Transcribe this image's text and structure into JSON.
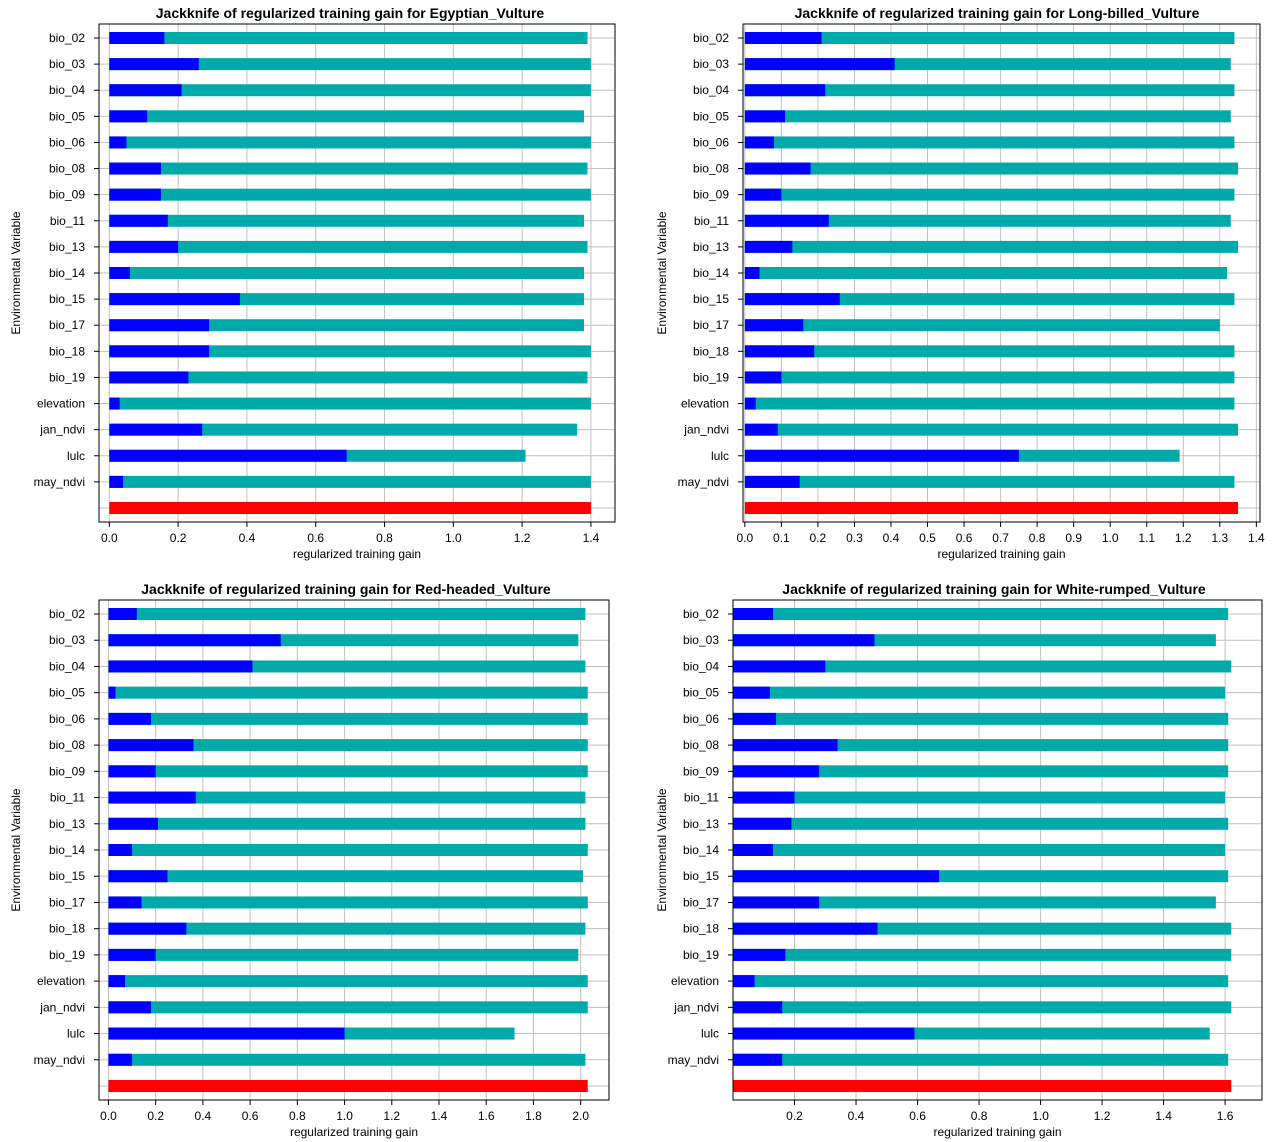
{
  "legend": {
    "without": "",
    "only": "",
    "all": ""
  },
  "colors": {
    "without_variable": "#00aaaa",
    "only_variable": "#0000ff",
    "all_variables": "#ff0000",
    "grid": "#c0c0c0"
  },
  "chart_data": [
    {
      "type": "bar",
      "orientation": "horizontal",
      "title": "Jackknife of regularized training gain for Egyptian_Vulture",
      "xlabel": "regularized training gain",
      "ylabel": "Environmental Variable",
      "xlim": [
        -0.03,
        1.47
      ],
      "xticks": [
        0.0,
        0.2,
        0.4,
        0.6,
        0.8,
        1.0,
        1.2,
        1.4
      ],
      "xtick_labels": [
        "0.0",
        "0.2",
        "0.4",
        "0.6",
        "0.8",
        "1.0",
        "1.2",
        "1.4"
      ],
      "categories": [
        "bio_02",
        "bio_03",
        "bio_04",
        "bio_05",
        "bio_06",
        "bio_08",
        "bio_09",
        "bio_11",
        "bio_13",
        "bio_14",
        "bio_15",
        "bio_17",
        "bio_18",
        "bio_19",
        "elevation",
        "jan_ndvi",
        "lulc",
        "may_ndvi"
      ],
      "series": [
        {
          "key": "without",
          "values": [
            1.39,
            1.4,
            1.4,
            1.38,
            1.4,
            1.39,
            1.4,
            1.38,
            1.39,
            1.38,
            1.38,
            1.38,
            1.4,
            1.39,
            1.4,
            1.36,
            1.21,
            1.4
          ]
        },
        {
          "key": "only",
          "values": [
            0.16,
            0.26,
            0.21,
            0.11,
            0.05,
            0.15,
            0.15,
            0.17,
            0.2,
            0.06,
            0.38,
            0.29,
            0.29,
            0.23,
            0.03,
            0.27,
            0.69,
            0.04
          ]
        }
      ],
      "all_variables": 1.4,
      "grid": true
    },
    {
      "type": "bar",
      "orientation": "horizontal",
      "title": "Jackknife of regularized training gain for Long-billed_Vulture",
      "xlabel": "regularized training gain",
      "ylabel": "Environmental Variable",
      "xlim": [
        -0.005,
        1.41
      ],
      "xticks": [
        0.0,
        0.1,
        0.2,
        0.3,
        0.4,
        0.5,
        0.6,
        0.7,
        0.8,
        0.9,
        1.0,
        1.1,
        1.2,
        1.3,
        1.4
      ],
      "xtick_labels": [
        "0.0",
        "0.1",
        "0.2",
        "0.3",
        "0.4",
        "0.5",
        "0.6",
        "0.7",
        "0.8",
        "0.9",
        "1.0",
        "1.1",
        "1.2",
        "1.3",
        "1.4"
      ],
      "categories": [
        "bio_02",
        "bio_03",
        "bio_04",
        "bio_05",
        "bio_06",
        "bio_08",
        "bio_09",
        "bio_11",
        "bio_13",
        "bio_14",
        "bio_15",
        "bio_17",
        "bio_18",
        "bio_19",
        "elevation",
        "jan_ndvi",
        "lulc",
        "may_ndvi"
      ],
      "series": [
        {
          "key": "without",
          "values": [
            1.34,
            1.33,
            1.34,
            1.33,
            1.34,
            1.35,
            1.34,
            1.33,
            1.35,
            1.32,
            1.34,
            1.3,
            1.34,
            1.34,
            1.34,
            1.35,
            1.19,
            1.34
          ]
        },
        {
          "key": "only",
          "values": [
            0.21,
            0.41,
            0.22,
            0.11,
            0.08,
            0.18,
            0.1,
            0.23,
            0.13,
            0.04,
            0.26,
            0.16,
            0.19,
            0.1,
            0.03,
            0.09,
            0.75,
            0.15
          ]
        }
      ],
      "all_variables": 1.35,
      "grid": true
    },
    {
      "type": "bar",
      "orientation": "horizontal",
      "title": "Jackknife of regularized training gain for Red-headed_Vulture",
      "xlabel": "regularized training gain",
      "ylabel": "Environmental Variable",
      "xlim": [
        -0.04,
        2.12
      ],
      "xticks": [
        0.0,
        0.2,
        0.4,
        0.6,
        0.8,
        1.0,
        1.2,
        1.4,
        1.6,
        1.8,
        2.0
      ],
      "xtick_labels": [
        "0.0",
        "0.2",
        "0.4",
        "0.6",
        "0.8",
        "1.0",
        "1.2",
        "1.4",
        "1.6",
        "1.8",
        "2.0"
      ],
      "categories": [
        "bio_02",
        "bio_03",
        "bio_04",
        "bio_05",
        "bio_06",
        "bio_08",
        "bio_09",
        "bio_11",
        "bio_13",
        "bio_14",
        "bio_15",
        "bio_17",
        "bio_18",
        "bio_19",
        "elevation",
        "jan_ndvi",
        "lulc",
        "may_ndvi"
      ],
      "series": [
        {
          "key": "without",
          "values": [
            2.02,
            1.99,
            2.02,
            2.03,
            2.03,
            2.03,
            2.03,
            2.02,
            2.02,
            2.03,
            2.01,
            2.03,
            2.02,
            1.99,
            2.03,
            2.03,
            1.72,
            2.02
          ]
        },
        {
          "key": "only",
          "values": [
            0.12,
            0.73,
            0.61,
            0.03,
            0.18,
            0.36,
            0.2,
            0.37,
            0.21,
            0.1,
            0.25,
            0.14,
            0.33,
            0.2,
            0.07,
            0.18,
            1.0,
            0.1
          ]
        }
      ],
      "all_variables": 2.03,
      "grid": true
    },
    {
      "type": "bar",
      "orientation": "horizontal",
      "title": "Jackknife of regularized training gain for White-rumped_Vulture",
      "xlabel": "regularized training gain",
      "ylabel": "Environmental Variable",
      "xlim": [
        0.0,
        1.72
      ],
      "xticks": [
        0.2,
        0.4,
        0.6,
        0.8,
        1.0,
        1.2,
        1.4,
        1.6
      ],
      "xtick_labels": [
        "0.2",
        "0.4",
        "0.6",
        "0.8",
        "1.0",
        "1.2",
        "1.4",
        "1.6"
      ],
      "categories": [
        "bio_02",
        "bio_03",
        "bio_04",
        "bio_05",
        "bio_06",
        "bio_08",
        "bio_09",
        "bio_11",
        "bio_13",
        "bio_14",
        "bio_15",
        "bio_17",
        "bio_18",
        "bio_19",
        "elevation",
        "jan_ndvi",
        "lulc",
        "may_ndvi"
      ],
      "series": [
        {
          "key": "without",
          "values": [
            1.61,
            1.57,
            1.62,
            1.6,
            1.61,
            1.61,
            1.61,
            1.6,
            1.61,
            1.6,
            1.61,
            1.57,
            1.62,
            1.62,
            1.61,
            1.62,
            1.55,
            1.61
          ]
        },
        {
          "key": "only",
          "values": [
            0.13,
            0.46,
            0.3,
            0.12,
            0.14,
            0.34,
            0.28,
            0.2,
            0.19,
            0.13,
            0.67,
            0.28,
            0.47,
            0.17,
            0.07,
            0.16,
            0.59,
            0.16
          ]
        }
      ],
      "all_variables": 1.62,
      "grid": true
    }
  ]
}
